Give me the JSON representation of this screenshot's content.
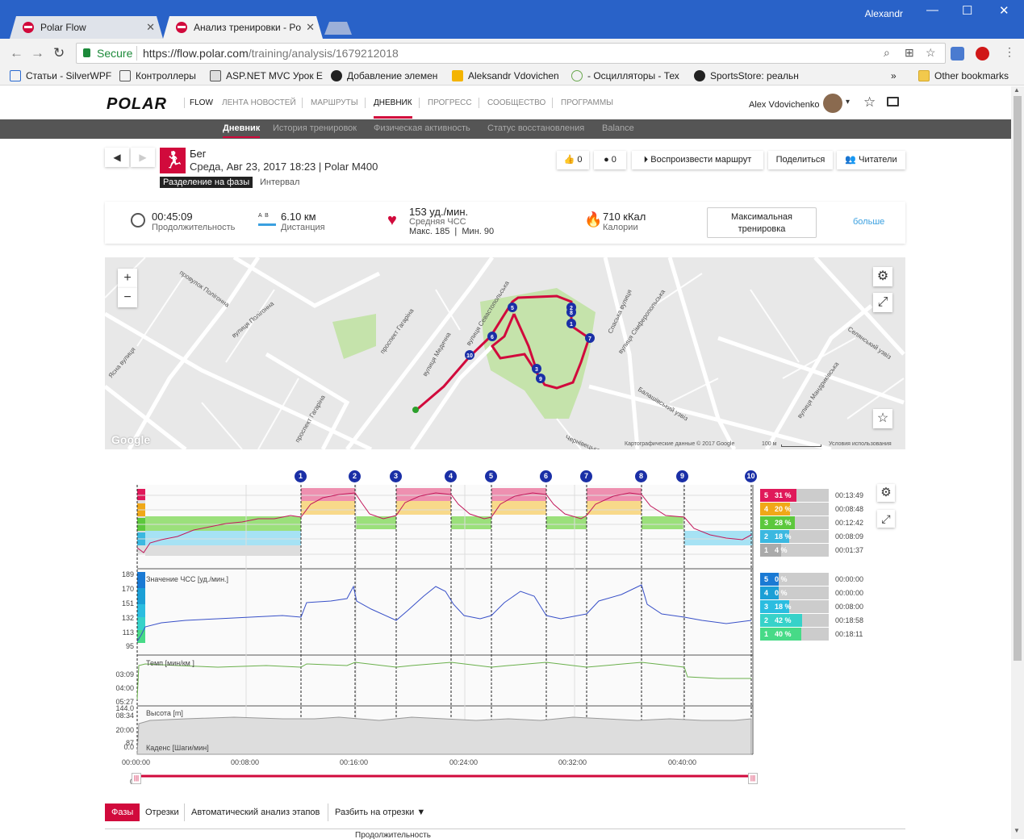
{
  "window": {
    "user": "Alexandr",
    "minimize": "—",
    "maximize": "☐",
    "close": "✕"
  },
  "tabs": [
    {
      "title": "Polar Flow",
      "close": "✕"
    },
    {
      "title": "Анализ тренировки - Po",
      "close": "✕"
    }
  ],
  "address": {
    "secure": "Secure",
    "url_host": "https://flow.polar.com",
    "url_path": "/training/analysis/1679212018"
  },
  "bookmarks": [
    "Статьи - SilverWPF",
    "Контроллеры",
    "ASP.NET MVC Урок Е",
    "Добавление элемен",
    "Aleksandr Vdovichen",
    "- Осцилляторы - Тех",
    "SportsStore: реальн",
    "»",
    "Other bookmarks"
  ],
  "header": {
    "logo": "POLAR",
    "nav": [
      "FLOW",
      "ЛЕНТА НОВОСТЕЙ",
      "МАРШРУТЫ",
      "ДНЕВНИК",
      "ПРОГРЕСС",
      "СООБЩЕСТВО",
      "ПРОГРАММЫ"
    ],
    "user": "Alex Vdovichenko",
    "caret": "▾"
  },
  "subnav": [
    "Дневник",
    "История тренировок",
    "Физическая активность",
    "Статус восстановления",
    "Balance"
  ],
  "exercise": {
    "sport": "Бег",
    "date": "Среда, Авг 23, 2017 18:23 | Polar M400",
    "phase_badge": "Разделение на фазы",
    "phase_type": "Интервал",
    "likes": "0",
    "comments": "0",
    "play_route": "Воспроизвести маршрут",
    "share": "Поделиться",
    "readers": "Читатели"
  },
  "summary": {
    "duration": "00:45:09",
    "duration_label": "Продолжительность",
    "distance": "6.10 км",
    "distance_label": "Дистанция",
    "hr": "153 уд./мин.",
    "hr_label": "Средняя ЧСС",
    "hr_minmax": "Макс. 185  |  Мин. 90",
    "calories": "710 кКал",
    "calories_label": "Калории",
    "max_training": "Максимальная тренировка",
    "more": "больше"
  },
  "map": {
    "zoom_in": "+",
    "zoom_out": "−",
    "streets": [
      "провулок Полігонна",
      "вулиця Полігонна",
      "проспект Гагаріна",
      "вулиця Медична",
      "вулиця Севастопольська",
      "Ясна вулиця",
      "вулиця Сімферопольська",
      "Спаська вулиця",
      "Балашівський узвіз",
      "Селянський узвіз",
      "вулиця Мандриківська",
      "проспект Гагаріна",
      "Чернівецька"
    ],
    "google": "Google",
    "attribution": "Картографические данные © 2017 Google",
    "scale": "100 м",
    "terms": "Условия использования",
    "markers": [
      "1",
      "2",
      "3",
      "4",
      "5",
      "6",
      "7",
      "8",
      "9",
      "10"
    ]
  },
  "charts": {
    "markers": [
      "1",
      "2",
      "3",
      "4",
      "5",
      "6",
      "7",
      "8",
      "9",
      "10"
    ],
    "hr_label": "Значение ЧСС [уд./мин.]",
    "hr_ticks": [
      "189",
      "170",
      "151",
      "132",
      "113",
      "95"
    ],
    "pace_label": "Темп [мин/км ]",
    "pace_ticks": [
      "03:09",
      "04:00",
      "05:27",
      "08:34",
      "20:00"
    ],
    "cad_label": "Каденс [Шаги/мин]",
    "cad_ticks": [
      "87",
      "0"
    ],
    "alt_label": "Высота [m]",
    "alt_ticks": [
      "144.0",
      "0.0"
    ],
    "x_ticks": [
      "00:00:00",
      "00:08:00",
      "00:16:00",
      "00:24:00",
      "00:32:00",
      "00:40:00"
    ],
    "hr_zones": [
      {
        "zone": "5",
        "pct": "31 %",
        "time": "00:13:49",
        "fraction": 0.31,
        "color": "#e0195a"
      },
      {
        "zone": "4",
        "pct": "20 %",
        "time": "00:08:48",
        "fraction": 0.2,
        "color": "#f0a818"
      },
      {
        "zone": "3",
        "pct": "28 %",
        "time": "00:12:42",
        "fraction": 0.28,
        "color": "#5cc83c"
      },
      {
        "zone": "2",
        "pct": "18 %",
        "time": "00:08:09",
        "fraction": 0.18,
        "color": "#3bb8e0"
      },
      {
        "zone": "1",
        "pct": "4 %",
        "time": "00:01:37",
        "fraction": 0.04,
        "color": "#aaaaaa"
      }
    ],
    "pace_zones": [
      {
        "zone": "5",
        "pct": "0 %",
        "time": "00:00:00",
        "fraction": 0.0,
        "color": "#1a7ad4"
      },
      {
        "zone": "4",
        "pct": "0 %",
        "time": "00:00:00",
        "fraction": 0.0,
        "color": "#1b9fd6"
      },
      {
        "zone": "3",
        "pct": "18 %",
        "time": "00:08:00",
        "fraction": 0.18,
        "color": "#2bbde0"
      },
      {
        "zone": "2",
        "pct": "42 %",
        "time": "00:18:58",
        "fraction": 0.42,
        "color": "#37d2c9"
      },
      {
        "zone": "1",
        "pct": "40 %",
        "time": "00:18:11",
        "fraction": 0.4,
        "color": "#47da87"
      }
    ]
  },
  "bottom_tabs": [
    "Фазы",
    "Отрезки",
    "Автоматический анализ этапов",
    "Разбить на отрезки"
  ],
  "table_header": "Продолжительность"
}
